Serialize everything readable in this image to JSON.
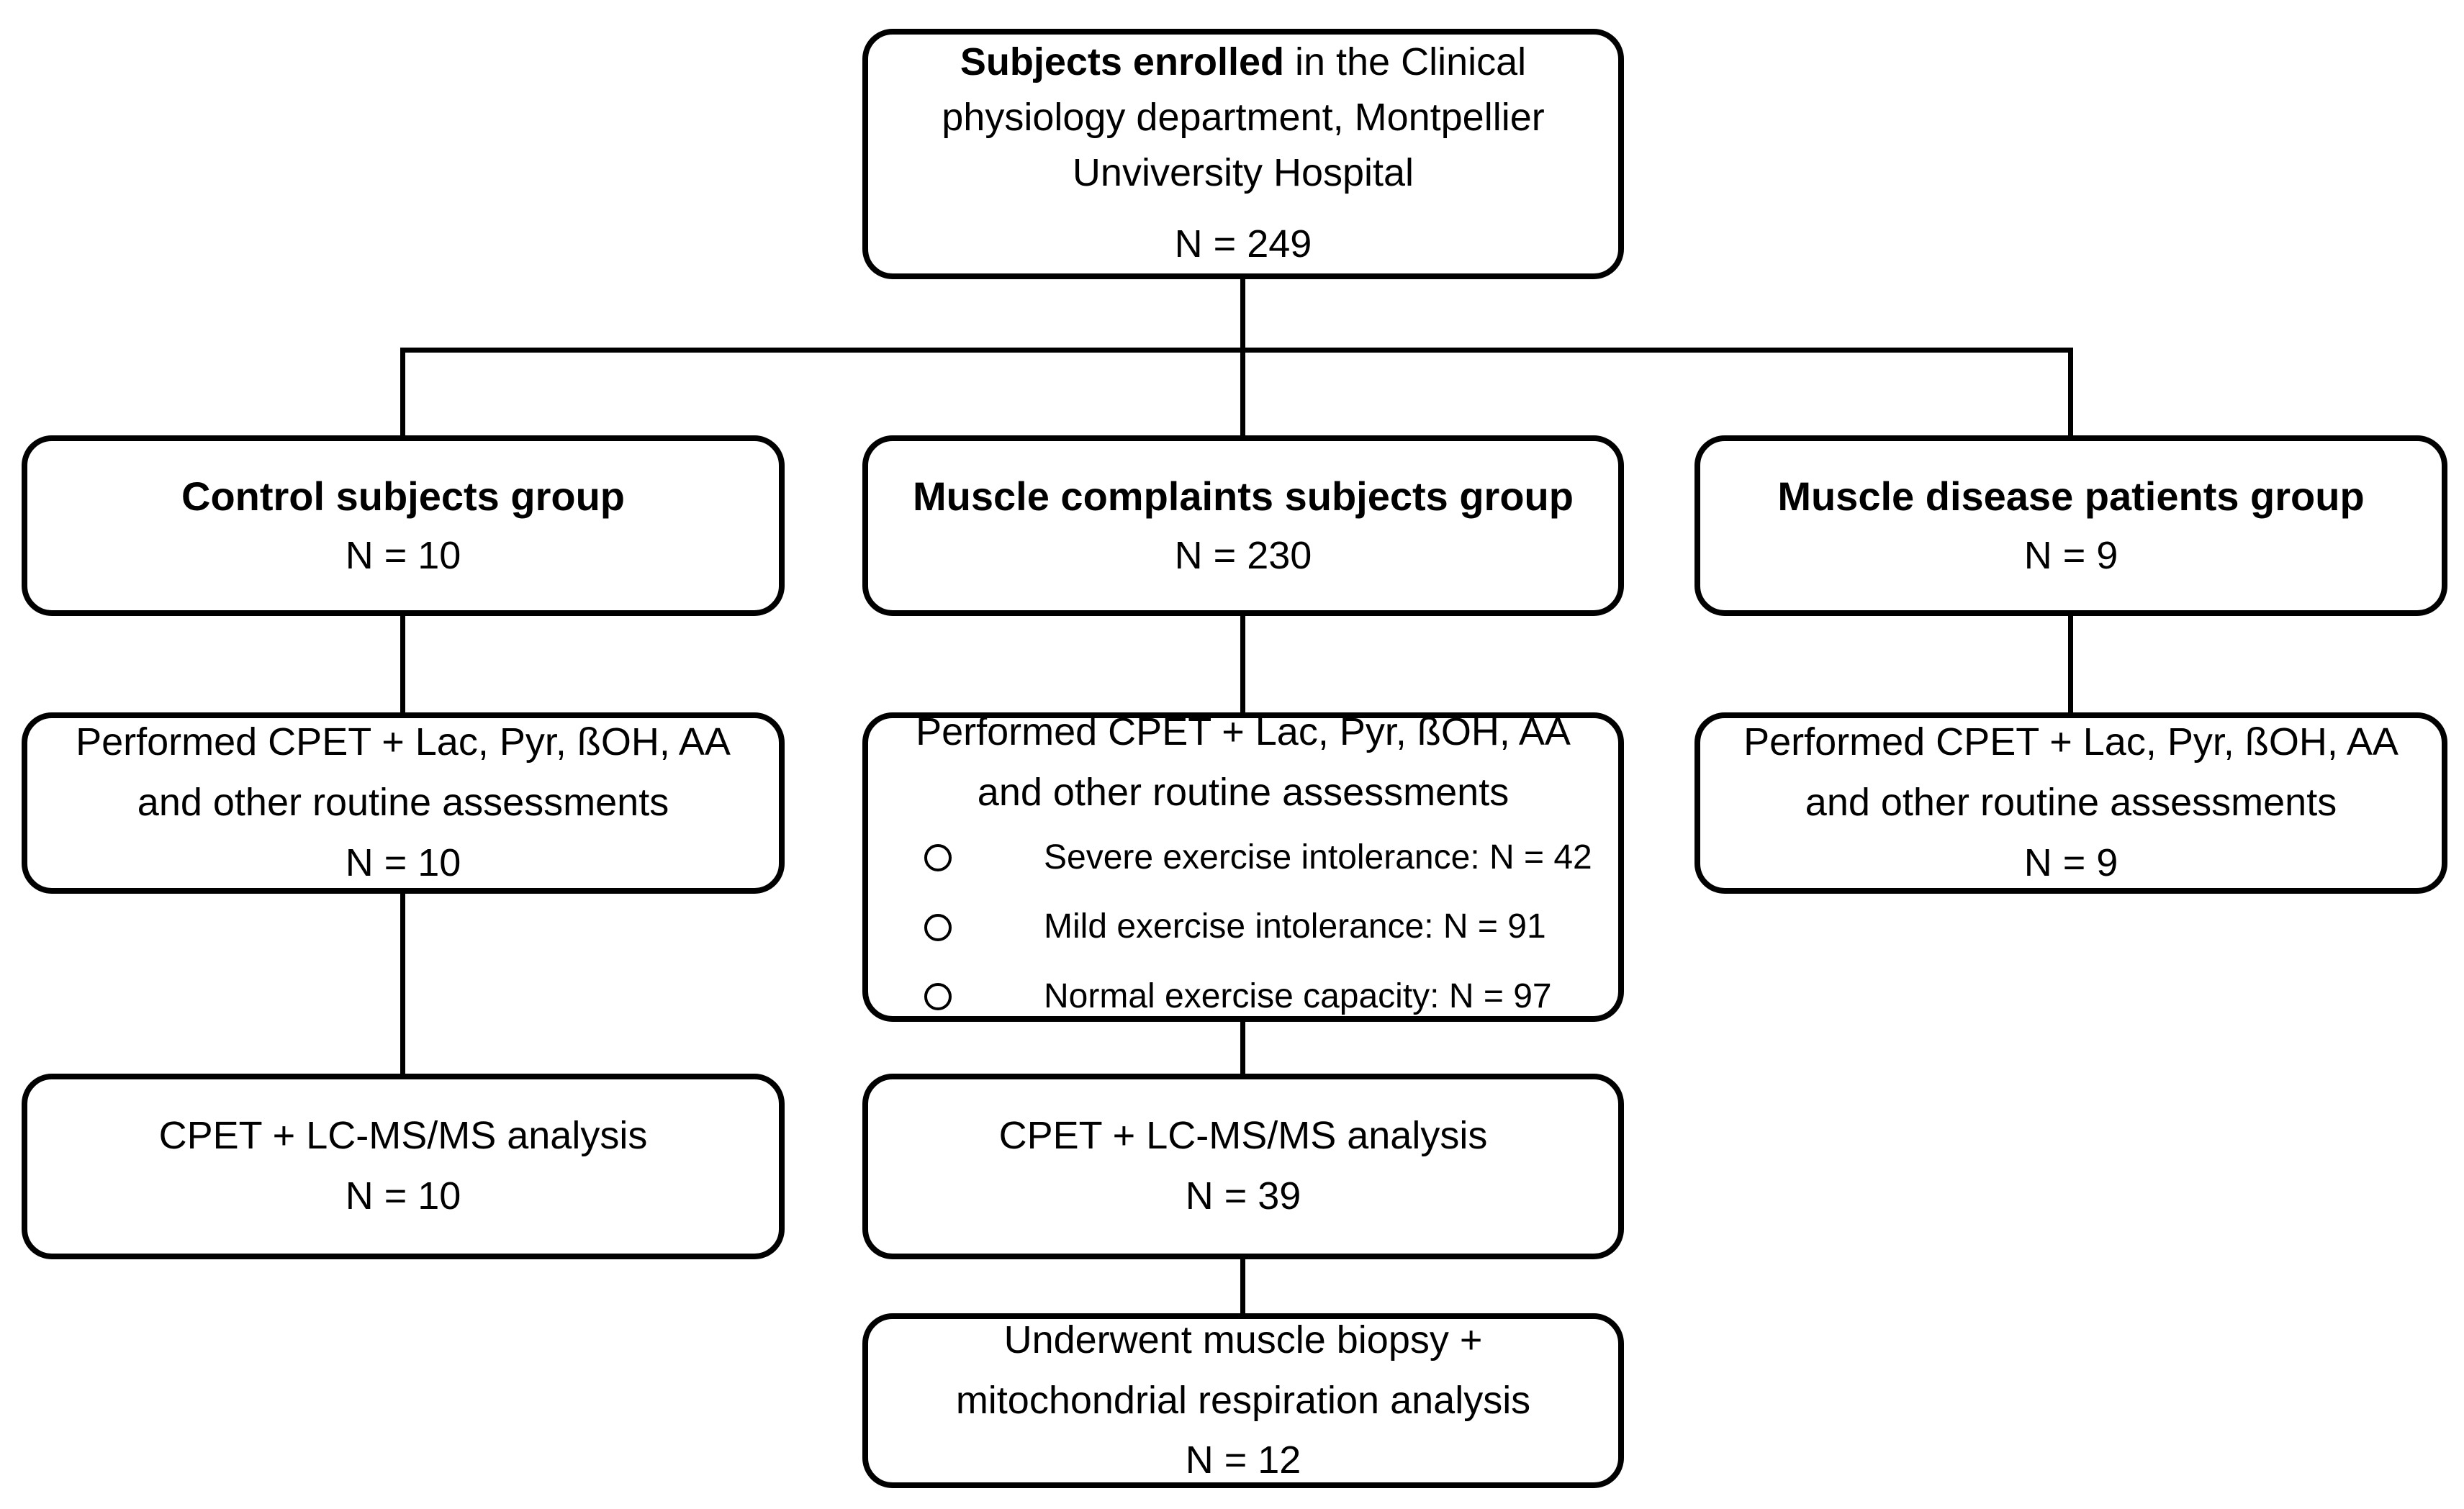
{
  "figure": {
    "background_color": "#ffffff",
    "line_color": "#000000",
    "type": "enrollment-flowchart"
  },
  "boxes": {
    "enrolled": {
      "line1_bold": "Subjects enrolled",
      "line1_rest": " in the Clinical",
      "line2": "physiology department, Montpellier",
      "line3": "Unviversity Hospital",
      "n": "N = 249"
    },
    "control_group": {
      "title": "Control subjects group",
      "n": "N = 10"
    },
    "complaints_group": {
      "title": "Muscle complaints subjects group",
      "n": "N = 230"
    },
    "disease_group": {
      "title": "Muscle disease patients group",
      "n": "N = 9"
    },
    "control_cpet": {
      "line1": "Performed CPET + Lac, Pyr, ßOH, AA",
      "line2": "and other routine assessments",
      "n": "N = 10"
    },
    "complaints_cpet": {
      "line1": "Performed CPET + Lac, Pyr, ßOH, AA",
      "line2": "and other routine assessments",
      "bullets": [
        "Severe exercise intolerance: N = 42",
        "Mild exercise intolerance: N = 91",
        "Normal exercise capacity: N = 97"
      ]
    },
    "disease_cpet": {
      "line1": "Performed CPET + Lac, Pyr, ßOH, AA",
      "line2": "and other routine assessments",
      "n": "N = 9"
    },
    "control_lcms": {
      "line1": "CPET + LC-MS/MS analysis",
      "n": "N = 10"
    },
    "complaints_lcms": {
      "line1": "CPET + LC-MS/MS analysis",
      "n": "N = 39"
    },
    "biopsy": {
      "line1": "Underwent muscle biopsy +",
      "line2": "mitochondrial respiration analysis",
      "n": "N = 12"
    }
  }
}
